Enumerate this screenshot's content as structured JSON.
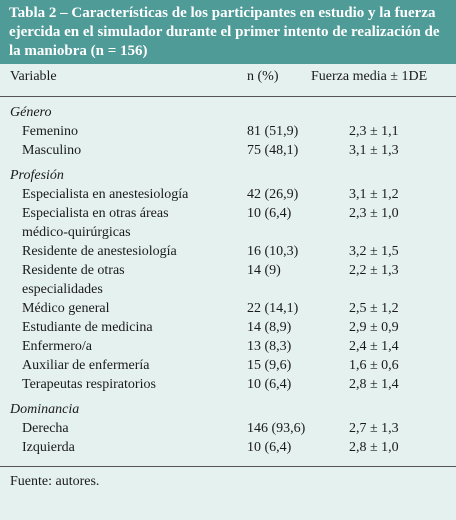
{
  "title": "Tabla 2 – Características de los participantes en estudio y la fuerza ejercida en el simulador durante el primer intento de realización de la maniobra (n = 156)",
  "table": {
    "columns": [
      "Variable",
      "n (%)",
      "Fuerza media ± 1DE"
    ],
    "groups": [
      {
        "name": "Género",
        "rows": [
          [
            "Femenino",
            "81 (51,9)",
            "2,3 ± 1,1"
          ],
          [
            "Masculino",
            "75 (48,1)",
            "3,1 ± 1,3"
          ]
        ]
      },
      {
        "name": "Profesión",
        "rows": [
          [
            "Especialista en anestesiología",
            "42 (26,9)",
            "3,1 ± 1,2"
          ],
          [
            "Especialista en otras áreas médico-quirúrgicas",
            "10 (6,4)",
            "2,3 ± 1,0"
          ],
          [
            "Residente de anestesiología",
            "16 (10,3)",
            "3,2 ± 1,5"
          ],
          [
            "Residente de otras especialidades",
            "14 (9)",
            "2,2 ± 1,3"
          ],
          [
            "Médico general",
            "22 (14,1)",
            "2,5 ± 1,2"
          ],
          [
            "Estudiante de medicina",
            "14 (8,9)",
            "2,9 ± 0,9"
          ],
          [
            "Enfermero/a",
            "13 (8,3)",
            "2,4 ± 1,4"
          ],
          [
            "Auxiliar de enfermería",
            "15 (9,6)",
            "1,6 ± 0,6"
          ],
          [
            "Terapeutas respiratorios",
            "10 (6,4)",
            "2,8 ± 1,4"
          ]
        ]
      },
      {
        "name": "Dominancia",
        "rows": [
          [
            "Derecha",
            "146 (93,6)",
            "2,7 ± 1,3"
          ],
          [
            "Izquierda",
            "10 (6,4)",
            "2,8 ± 1,0"
          ]
        ]
      }
    ]
  },
  "footer": "Fuente: autores."
}
